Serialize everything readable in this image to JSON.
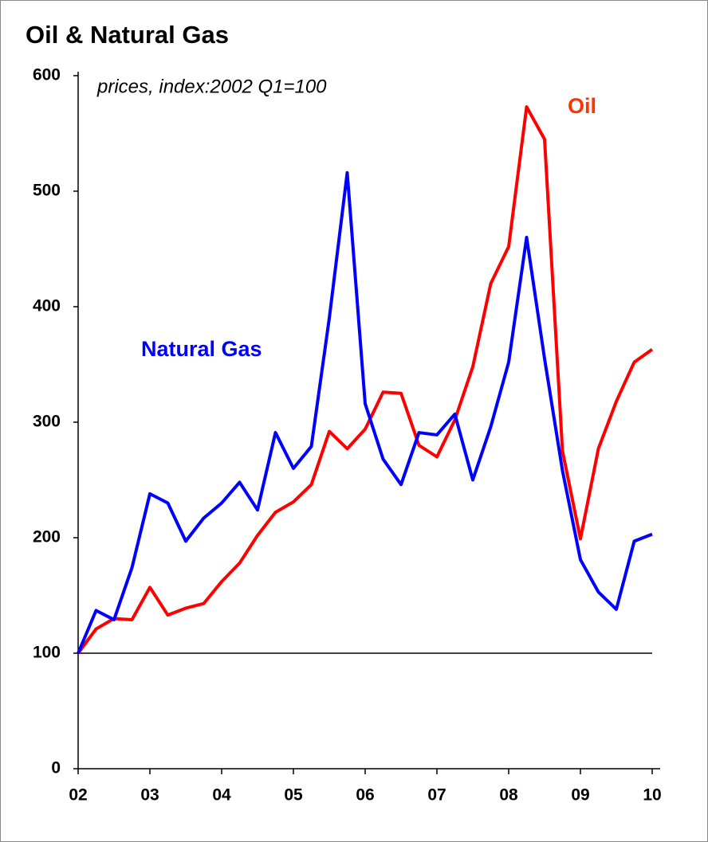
{
  "chart_data": {
    "type": "line",
    "title": "Oil & Natural Gas",
    "subtitle": "prices, index:2002 Q1=100",
    "categories": [
      "02",
      null,
      null,
      null,
      "03",
      null,
      null,
      null,
      "04",
      null,
      null,
      null,
      "05",
      null,
      null,
      null,
      "06",
      null,
      null,
      null,
      "07",
      null,
      null,
      null,
      "08",
      null,
      null,
      null,
      "09",
      null,
      null,
      null,
      "10"
    ],
    "series": [
      {
        "name": "Oil",
        "color": "#ff0000",
        "values": [
          100,
          121,
          130,
          129,
          157,
          133,
          139,
          143,
          162,
          178,
          202,
          222,
          231,
          246,
          292,
          277,
          294,
          326,
          325,
          280,
          270,
          302,
          348,
          420,
          452,
          573,
          545,
          275,
          199,
          277,
          318,
          352,
          363
        ]
      },
      {
        "name": "Natural Gas",
        "color": "#0000ff",
        "values": [
          100,
          137,
          129,
          174,
          238,
          230,
          197,
          217,
          230,
          248,
          224,
          291,
          260,
          279,
          390,
          516,
          316,
          268,
          246,
          291,
          289,
          307,
          250,
          296,
          352,
          460,
          355,
          258,
          181,
          153,
          138,
          197,
          203
        ]
      }
    ],
    "ylim": [
      0,
      600
    ],
    "yticks": [
      0,
      100,
      200,
      300,
      400,
      500,
      600
    ],
    "hline": 100
  }
}
